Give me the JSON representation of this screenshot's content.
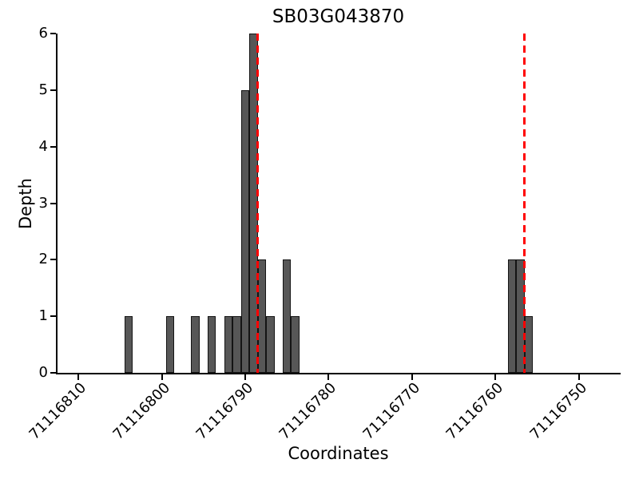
{
  "chart_data": {
    "type": "bar",
    "title": "SB03G043870",
    "xlabel": "Coordinates",
    "ylabel": "Depth",
    "x_axis": {
      "reversed": true,
      "left_edge_value": 71116812.5,
      "right_edge_value": 71116745,
      "ticks": [
        71116810,
        71116800,
        71116790,
        71116780,
        71116770,
        71116760,
        71116750
      ],
      "tick_rotation_deg": 45
    },
    "y_axis": {
      "min": 0,
      "max": 6,
      "ticks": [
        0,
        1,
        2,
        3,
        4,
        5,
        6
      ]
    },
    "bar_width": 1,
    "bars": [
      {
        "coordinate": 71116804,
        "depth": 1
      },
      {
        "coordinate": 71116799,
        "depth": 1
      },
      {
        "coordinate": 71116796,
        "depth": 1
      },
      {
        "coordinate": 71116794,
        "depth": 1
      },
      {
        "coordinate": 71116792,
        "depth": 1
      },
      {
        "coordinate": 71116791,
        "depth": 1
      },
      {
        "coordinate": 71116790,
        "depth": 5
      },
      {
        "coordinate": 71116789,
        "depth": 6
      },
      {
        "coordinate": 71116788,
        "depth": 2
      },
      {
        "coordinate": 71116787,
        "depth": 1
      },
      {
        "coordinate": 71116785,
        "depth": 2
      },
      {
        "coordinate": 71116784,
        "depth": 1
      },
      {
        "coordinate": 71116758,
        "depth": 2
      },
      {
        "coordinate": 71116757,
        "depth": 2
      },
      {
        "coordinate": 71116756,
        "depth": 1
      }
    ],
    "vlines": [
      {
        "x": 71116788.5,
        "style": "dashed"
      },
      {
        "x": 71116756.5,
        "style": "dashed"
      }
    ],
    "colors": {
      "bar_fill": "#575757",
      "bar_edge": "#141414",
      "vline": "#ff0000",
      "axis": "#000000",
      "background": "#ffffff"
    },
    "grid": false,
    "legend": null
  }
}
